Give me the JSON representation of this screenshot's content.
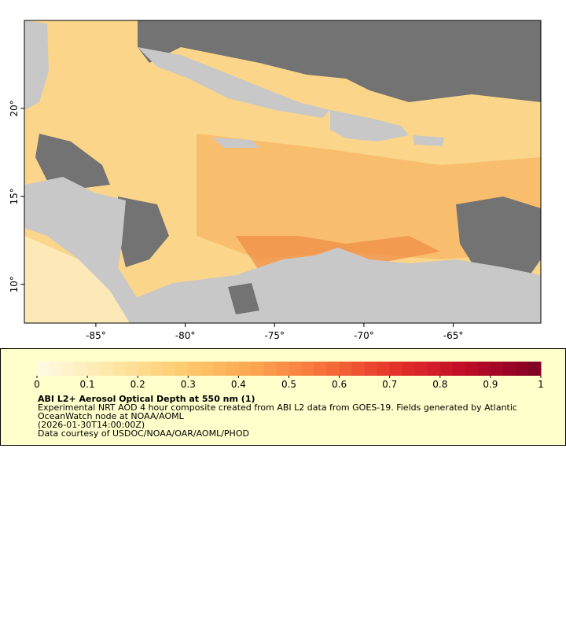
{
  "map": {
    "xlim": [
      -89,
      -60.1
    ],
    "ylim": [
      7.8,
      25
    ],
    "xticks": [
      {
        "value": -85,
        "label": "-85°"
      },
      {
        "value": -80,
        "label": "-80°"
      },
      {
        "value": -75,
        "label": "-75°"
      },
      {
        "value": -70,
        "label": "-70°"
      },
      {
        "value": -65,
        "label": "-65°"
      }
    ],
    "yticks": [
      {
        "value": 10,
        "label": "10°"
      },
      {
        "value": 15,
        "label": "15°"
      },
      {
        "value": 20,
        "label": "20°"
      }
    ]
  },
  "colorbar": {
    "lim": [
      0,
      1
    ],
    "ticks": [
      0,
      0.1,
      0.2,
      0.3,
      0.4,
      0.5,
      0.6,
      0.7,
      0.8,
      0.9,
      1
    ],
    "colors": [
      "#fffbe8",
      "#fee8a8",
      "#fdcb70",
      "#fca650",
      "#f7703a",
      "#e4302a",
      "#bc0a26",
      "#7f0026"
    ],
    "title": "ABI L2+ Aerosol Optical Depth at 550 nm (1)",
    "description": [
      "Experimental NRT AOD 4 hour composite created from ABI L2 data from GOES-19. Fields generated by Atlantic",
      "OceanWatch node at NOAA/AOML"
    ],
    "date": "(2026-01-30T14:00:00Z)",
    "credit": "Data courtesy of USDOC/NOAA/OAR/AOML/PHOD"
  }
}
